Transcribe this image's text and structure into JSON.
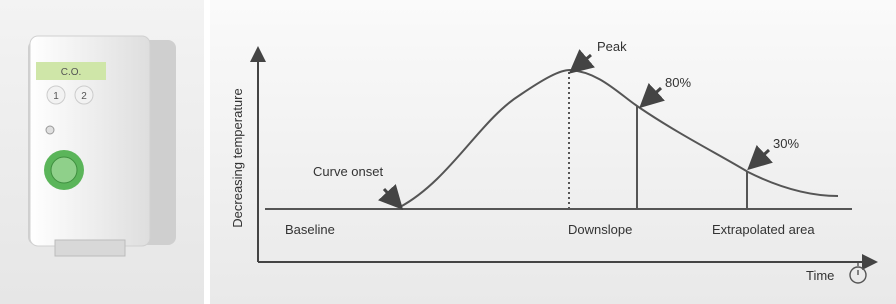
{
  "device": {
    "label": "C.O.",
    "port_1": "1",
    "port_2": "2"
  },
  "diagram": {
    "y_axis_label": "Decreasing temperature",
    "x_axis_label": "Time",
    "annotations": {
      "peak": "Peak",
      "p80": "80%",
      "p30": "30%",
      "onset": "Curve onset"
    },
    "phases": {
      "baseline": "Baseline",
      "downslope": "Downslope",
      "extrapolated": "Extrapolated area"
    }
  }
}
